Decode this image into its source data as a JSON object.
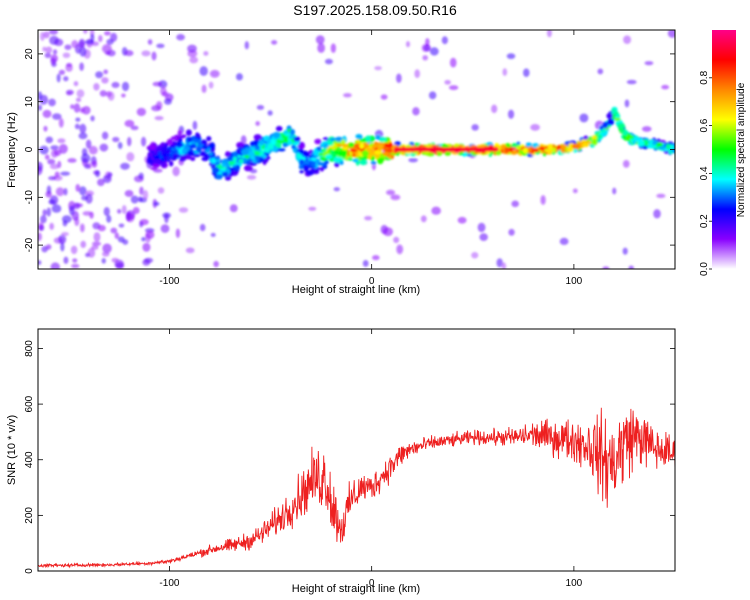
{
  "page": {
    "title": "S197.2025.158.09.50.R16"
  },
  "chart_data": [
    {
      "type": "heatmap",
      "title": "",
      "xlabel": "Height of straight line (km)",
      "ylabel": "Frequency (Hz)",
      "xlim": [
        -165,
        150
      ],
      "ylim": [
        -25,
        25
      ],
      "xticks": [
        "-100",
        "0",
        "100"
      ],
      "xtick_values": [
        -100,
        0,
        100
      ],
      "yticks": [
        "-20",
        "-10",
        "0",
        "10",
        "20"
      ],
      "ytick_values": [
        -20,
        -10,
        0,
        10,
        20
      ],
      "colorbar": {
        "label": "Normalized spectral amplitude",
        "range": [
          0,
          1
        ],
        "ticks": [
          "0.0",
          "0.2",
          "0.4",
          "0.6",
          "0.8"
        ],
        "tick_values": [
          0.0,
          0.2,
          0.4,
          0.6,
          0.8
        ],
        "colors": [
          "#ffffff",
          "#8800ff",
          "#0000ff",
          "#00ffff",
          "#00ff00",
          "#ffff00",
          "#ff8800",
          "#ff0000",
          "#ff0088"
        ]
      },
      "ridge": {
        "x": [
          -165,
          -140,
          -120,
          -100,
          -90,
          -80,
          -75,
          -70,
          -60,
          -50,
          -40,
          -35,
          -30,
          -25,
          -20,
          -10,
          0,
          10,
          30,
          50,
          70,
          80,
          90,
          100,
          110,
          115,
          120,
          125,
          130,
          140,
          150
        ],
        "frequency": [
          0,
          -1,
          -2,
          -1,
          1,
          0,
          -5,
          -3,
          -1,
          1,
          3,
          -2,
          -3,
          -1,
          0,
          0,
          0,
          0,
          0,
          0,
          0,
          0,
          0,
          0.5,
          2,
          4,
          8,
          3,
          2,
          1,
          0
        ],
        "amplitude": [
          0.1,
          0.12,
          0.15,
          0.3,
          0.4,
          0.3,
          0.45,
          0.4,
          0.45,
          0.45,
          0.5,
          0.4,
          0.35,
          0.5,
          0.65,
          0.8,
          0.85,
          0.9,
          0.95,
          0.95,
          0.95,
          0.85,
          0.85,
          0.8,
          0.7,
          0.55,
          0.5,
          0.6,
          0.55,
          0.5,
          0.45
        ]
      }
    },
    {
      "type": "line",
      "title": "",
      "xlabel": "Height of straight line (km)",
      "ylabel": "SNR (10 * v/v)",
      "xlim": [
        -165,
        150
      ],
      "ylim": [
        0,
        870
      ],
      "xticks": [
        "-100",
        "0",
        "100"
      ],
      "xtick_values": [
        -100,
        0,
        100
      ],
      "yticks": [
        "0",
        "200",
        "400",
        "600",
        "800"
      ],
      "ytick_values": [
        0,
        200,
        400,
        600,
        800
      ],
      "grid": false,
      "color": "#ee2020",
      "series": [
        {
          "x": [
            -165,
            -150,
            -140,
            -130,
            -120,
            -110,
            -100,
            -95,
            -90,
            -85,
            -80,
            -75,
            -70,
            -65,
            -60,
            -55,
            -50,
            -45,
            -40,
            -35,
            -30,
            -25,
            -22,
            -20,
            -15,
            -10,
            -5,
            0,
            5,
            10,
            15,
            20,
            25,
            30,
            40,
            50,
            60,
            70,
            80,
            90,
            100,
            105,
            110,
            115,
            118,
            122,
            126,
            130,
            135,
            140,
            145,
            150
          ],
          "values": [
            20,
            20,
            22,
            22,
            25,
            28,
            35,
            45,
            55,
            65,
            75,
            85,
            90,
            100,
            110,
            130,
            160,
            190,
            230,
            270,
            320,
            340,
            330,
            250,
            150,
            260,
            300,
            300,
            340,
            380,
            420,
            440,
            450,
            460,
            470,
            480,
            480,
            480,
            490,
            480,
            470,
            460,
            440,
            400,
            380,
            420,
            470,
            490,
            470,
            440,
            430,
            420
          ],
          "spread": [
            8,
            8,
            8,
            8,
            8,
            9,
            10,
            12,
            15,
            20,
            25,
            30,
            35,
            40,
            45,
            55,
            65,
            80,
            100,
            120,
            140,
            170,
            200,
            160,
            100,
            100,
            80,
            70,
            70,
            70,
            60,
            50,
            40,
            35,
            35,
            35,
            40,
            50,
            70,
            90,
            110,
            130,
            170,
            220,
            250,
            230,
            200,
            160,
            130,
            110,
            100,
            100
          ]
        }
      ]
    }
  ]
}
